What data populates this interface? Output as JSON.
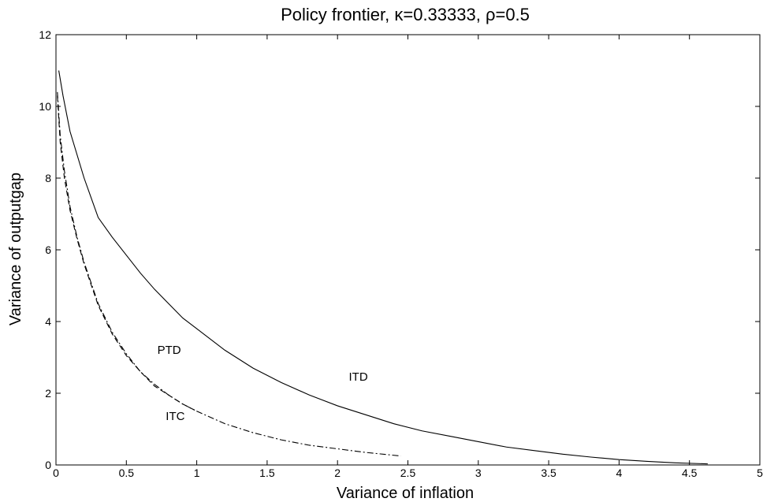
{
  "chart_data": {
    "type": "line",
    "title": "Policy frontier,   κ=0.33333,   ρ=0.5",
    "xlabel": "Variance of inflation",
    "ylabel": "Variance of outputgap",
    "xlim": [
      0,
      5
    ],
    "ylim": [
      0,
      12
    ],
    "xticks": [
      "0",
      "0.5",
      "1",
      "1.5",
      "2",
      "2.5",
      "3",
      "3.5",
      "4",
      "4.5",
      "5"
    ],
    "yticks": [
      "0",
      "2",
      "4",
      "6",
      "8",
      "10",
      "12"
    ],
    "grid": false,
    "series": [
      {
        "label": "ITD",
        "style": "solid",
        "x": [
          0.02,
          0.05,
          0.1,
          0.2,
          0.3,
          0.4,
          0.5,
          0.6,
          0.7,
          0.8,
          0.9,
          1.0,
          1.2,
          1.4,
          1.6,
          1.8,
          2.0,
          2.2,
          2.4,
          2.6,
          2.8,
          3.0,
          3.2,
          3.4,
          3.6,
          3.8,
          4.0,
          4.2,
          4.4,
          4.63
        ],
        "y": [
          11.0,
          10.3,
          9.3,
          8.0,
          6.9,
          6.35,
          5.85,
          5.35,
          4.9,
          4.5,
          4.1,
          3.8,
          3.2,
          2.7,
          2.3,
          1.95,
          1.65,
          1.4,
          1.15,
          0.95,
          0.8,
          0.65,
          0.5,
          0.4,
          0.3,
          0.22,
          0.15,
          0.1,
          0.06,
          0.03
        ]
      },
      {
        "label": "PTD",
        "style": "dashed",
        "x": [
          0.01,
          0.03,
          0.06,
          0.1,
          0.15,
          0.2,
          0.3,
          0.4,
          0.5,
          0.6,
          0.7,
          0.8,
          0.9,
          1.0
        ],
        "y": [
          10.3,
          9.0,
          8.0,
          7.1,
          6.3,
          5.6,
          4.45,
          3.65,
          3.05,
          2.6,
          2.2,
          1.95,
          1.7,
          1.5
        ]
      },
      {
        "label": "ITC",
        "style": "dash-dot",
        "x": [
          0.01,
          0.03,
          0.06,
          0.1,
          0.15,
          0.2,
          0.3,
          0.4,
          0.5,
          0.6,
          0.7,
          0.8,
          0.9,
          1.0,
          1.2,
          1.4,
          1.6,
          1.8,
          2.0,
          2.2,
          2.45
        ],
        "y": [
          10.4,
          9.2,
          8.2,
          7.2,
          6.35,
          5.65,
          4.5,
          3.7,
          3.1,
          2.6,
          2.25,
          1.95,
          1.7,
          1.5,
          1.15,
          0.9,
          0.7,
          0.55,
          0.45,
          0.35,
          0.25
        ]
      }
    ],
    "annotations": [
      {
        "text": "PTD",
        "x": 0.72,
        "y": 3.1
      },
      {
        "text": "ITD",
        "x": 2.08,
        "y": 2.35
      },
      {
        "text": "ITC",
        "x": 0.78,
        "y": 1.25
      }
    ]
  }
}
